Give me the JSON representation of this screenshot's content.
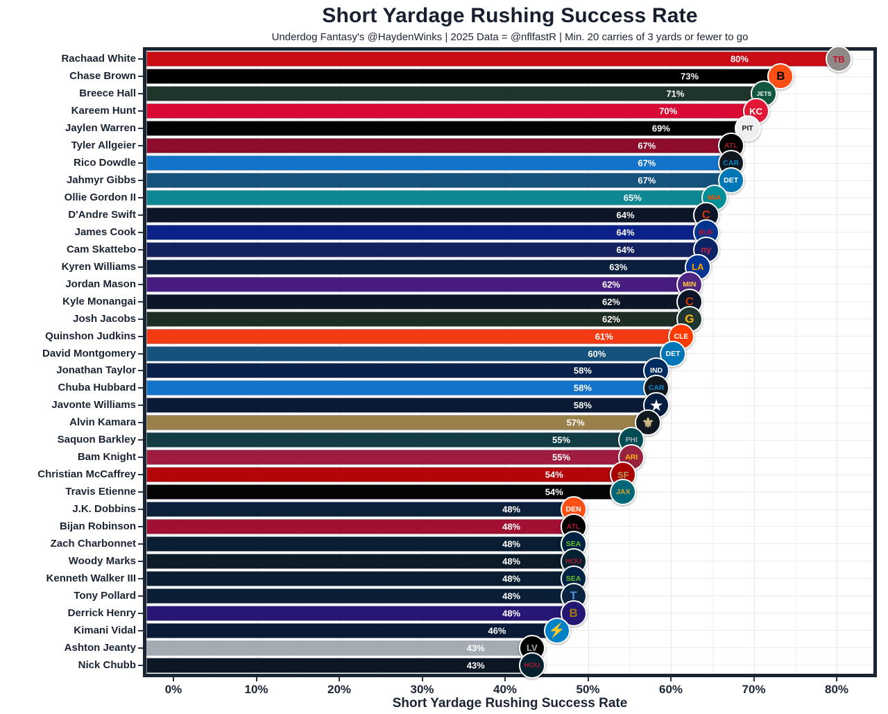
{
  "title": "Short Yardage Rushing Success Rate",
  "subtitle": "Underdog Fantasy's @HaydenWinks | 2025 Data = @nflfastR | Min. 20 carries of 3 yards or fewer to go",
  "x_axis": {
    "label": "Short Yardage Rushing Success Rate",
    "ticks": [
      "0%",
      "10%",
      "20%",
      "30%",
      "40%",
      "50%",
      "60%",
      "70%",
      "80%"
    ],
    "tick_values": [
      0,
      10,
      20,
      30,
      40,
      50,
      60,
      70,
      80
    ],
    "range": [
      -4,
      84
    ],
    "grid": "on",
    "minor_grid_step": 5
  },
  "chart_data": {
    "type": "bar",
    "orientation": "horizontal",
    "title": "Short Yardage Rushing Success Rate",
    "subtitle": "Underdog Fantasy's @HaydenWinks | 2025 Data = @nflfastR | Min. 20 carries of 3 yards or fewer to go",
    "xlabel": "Short Yardage Rushing Success Rate",
    "ylabel": "",
    "xlim": [
      0,
      84
    ],
    "legend": "none",
    "categories": [
      "Rachaad White",
      "Chase Brown",
      "Breece Hall",
      "Kareem Hunt",
      "Jaylen Warren",
      "Tyler Allgeier",
      "Rico Dowdle",
      "Jahmyr Gibbs",
      "Ollie Gordon II",
      "D'Andre Swift",
      "James Cook",
      "Cam Skattebo",
      "Kyren Williams",
      "Jordan Mason",
      "Kyle Monangai",
      "Josh Jacobs",
      "Quinshon Judkins",
      "David Montgomery",
      "Jonathan Taylor",
      "Chuba Hubbard",
      "Javonte Williams",
      "Alvin Kamara",
      "Saquon Barkley",
      "Bam Knight",
      "Christian McCaffrey",
      "Travis Etienne",
      "J.K. Dobbins",
      "Bijan Robinson",
      "Zach Charbonnet",
      "Woody Marks",
      "Kenneth Walker III",
      "Tony Pollard",
      "Derrick Henry",
      "Kimani Vidal",
      "Ashton Jeanty",
      "Nick Chubb"
    ],
    "values": [
      80,
      73,
      71,
      70,
      69,
      67,
      67,
      67,
      65,
      64,
      64,
      64,
      63,
      62,
      62,
      62,
      61,
      60,
      58,
      58,
      58,
      57,
      55,
      55,
      54,
      54,
      48,
      48,
      48,
      48,
      48,
      48,
      48,
      46,
      43,
      43
    ],
    "bars": [
      {
        "player": "Rachaad White",
        "team": "Tampa Bay Buccaneers",
        "value": 80,
        "label": "80%",
        "bar_color": "#C80D17",
        "logo": {
          "abbr": "TB",
          "bg": "#8F8A88",
          "fg": "#C8102E"
        }
      },
      {
        "player": "Chase Brown",
        "team": "Cincinnati Bengals",
        "value": 73,
        "label": "73%",
        "bar_color": "#000000",
        "logo": {
          "abbr": "B",
          "bg": "#FB4F14",
          "fg": "#000000"
        }
      },
      {
        "player": "Breece Hall",
        "team": "New York Jets",
        "value": 71,
        "label": "71%",
        "bar_color": "#1F352B",
        "logo": {
          "abbr": "JETS",
          "bg": "#125740",
          "fg": "#FFFFFF"
        }
      },
      {
        "player": "Kareem Hunt",
        "team": "Kansas City Chiefs",
        "value": 70,
        "label": "70%",
        "bar_color": "#D80A33",
        "logo": {
          "abbr": "KC",
          "bg": "#E31837",
          "fg": "#FFFFFF"
        }
      },
      {
        "player": "Jaylen Warren",
        "team": "Pittsburgh Steelers",
        "value": 69,
        "label": "69%",
        "bar_color": "#010101",
        "logo": {
          "abbr": "PIT",
          "bg": "#EFEFEF",
          "fg": "#101820"
        }
      },
      {
        "player": "Tyler Allgeier",
        "team": "Atlanta Falcons",
        "value": 67,
        "label": "67%",
        "bar_color": "#8E0C2B",
        "logo": {
          "abbr": "ATL",
          "bg": "#000000",
          "fg": "#A71930"
        }
      },
      {
        "player": "Rico Dowdle",
        "team": "Carolina Panthers",
        "value": 67,
        "label": "67%",
        "bar_color": "#1273C9",
        "logo": {
          "abbr": "CAR",
          "bg": "#101820",
          "fg": "#0085CA"
        }
      },
      {
        "player": "Jahmyr Gibbs",
        "team": "Detroit Lions",
        "value": 67,
        "label": "67%",
        "bar_color": "#15537D",
        "logo": {
          "abbr": "DET",
          "bg": "#0076B6",
          "fg": "#FFFFFF"
        }
      },
      {
        "player": "Ollie Gordon II",
        "team": "Miami Dolphins",
        "value": 65,
        "label": "65%",
        "bar_color": "#0F8793",
        "logo": {
          "abbr": "MIA",
          "bg": "#008E97",
          "fg": "#FC4C02"
        }
      },
      {
        "player": "D'Andre Swift",
        "team": "Chicago Bears",
        "value": 64,
        "label": "64%",
        "bar_color": "#0D1626",
        "logo": {
          "abbr": "C",
          "bg": "#0B162A",
          "fg": "#C83803"
        }
      },
      {
        "player": "James Cook",
        "team": "Buffalo Bills",
        "value": 64,
        "label": "64%",
        "bar_color": "#0B2188",
        "logo": {
          "abbr": "BUF",
          "bg": "#00338D",
          "fg": "#C60C30"
        }
      },
      {
        "player": "Cam Skattebo",
        "team": "New York Giants",
        "value": 64,
        "label": "64%",
        "bar_color": "#14215F",
        "logo": {
          "abbr": "ny",
          "bg": "#0B2265",
          "fg": "#C9243F"
        }
      },
      {
        "player": "Kyren Williams",
        "team": "Los Angeles Rams",
        "value": 63,
        "label": "63%",
        "bar_color": "#0B1E3E",
        "logo": {
          "abbr": "LA",
          "bg": "#003594",
          "fg": "#FFA300"
        }
      },
      {
        "player": "Jordan Mason",
        "team": "Minnesota Vikings",
        "value": 62,
        "label": "62%",
        "bar_color": "#471C80",
        "logo": {
          "abbr": "MIN",
          "bg": "#4F2683",
          "fg": "#FFC62F"
        }
      },
      {
        "player": "Kyle Monangai",
        "team": "Chicago Bears",
        "value": 62,
        "label": "62%",
        "bar_color": "#0D1626",
        "logo": {
          "abbr": "C",
          "bg": "#0B162A",
          "fg": "#C83803"
        }
      },
      {
        "player": "Josh Jacobs",
        "team": "Green Bay Packers",
        "value": 62,
        "label": "62%",
        "bar_color": "#1F2E24",
        "logo": {
          "abbr": "G",
          "bg": "#203731",
          "fg": "#FFB612"
        }
      },
      {
        "player": "Quinshon Judkins",
        "team": "Cleveland Browns",
        "value": 61,
        "label": "61%",
        "bar_color": "#F23B12",
        "logo": {
          "abbr": "CLE",
          "bg": "#FF3C00",
          "fg": "#FFFFFF"
        }
      },
      {
        "player": "David Montgomery",
        "team": "Detroit Lions",
        "value": 60,
        "label": "60%",
        "bar_color": "#15537D",
        "logo": {
          "abbr": "DET",
          "bg": "#0076B6",
          "fg": "#FFFFFF"
        }
      },
      {
        "player": "Jonathan Taylor",
        "team": "Indianapolis Colts",
        "value": 58,
        "label": "58%",
        "bar_color": "#08214B",
        "logo": {
          "abbr": "IND",
          "bg": "#002C5F",
          "fg": "#FFFFFF"
        }
      },
      {
        "player": "Chuba Hubbard",
        "team": "Carolina Panthers",
        "value": 58,
        "label": "58%",
        "bar_color": "#1273C9",
        "logo": {
          "abbr": "CAR",
          "bg": "#101820",
          "fg": "#0085CA"
        }
      },
      {
        "player": "Javonte Williams",
        "team": "Dallas Cowboys",
        "value": 58,
        "label": "58%",
        "bar_color": "#0A1A34",
        "logo": {
          "abbr": "★",
          "bg": "#041E42",
          "fg": "#FFFFFF"
        }
      },
      {
        "player": "Alvin Kamara",
        "team": "New Orleans Saints",
        "value": 57,
        "label": "57%",
        "bar_color": "#9A8049",
        "logo": {
          "abbr": "⚜",
          "bg": "#101820",
          "fg": "#D3BC8D"
        }
      },
      {
        "player": "Saquon Barkley",
        "team": "Philadelphia Eagles",
        "value": 55,
        "label": "55%",
        "bar_color": "#113C44",
        "logo": {
          "abbr": "PHI",
          "bg": "#004C54",
          "fg": "#A5ACAF"
        }
      },
      {
        "player": "Bam Knight",
        "team": "Arizona Cardinals",
        "value": 55,
        "label": "55%",
        "bar_color": "#A01C3E",
        "logo": {
          "abbr": "ARI",
          "bg": "#97233F",
          "fg": "#FFB612"
        }
      },
      {
        "player": "Christian McCaffrey",
        "team": "San Francisco 49ers",
        "value": 54,
        "label": "54%",
        "bar_color": "#B30509",
        "logo": {
          "abbr": "SF",
          "bg": "#AA0000",
          "fg": "#B3995D"
        }
      },
      {
        "player": "Travis Etienne",
        "team": "Jacksonville Jaguars",
        "value": 54,
        "label": "54%",
        "bar_color": "#050505",
        "logo": {
          "abbr": "JAX",
          "bg": "#006778",
          "fg": "#D7A22A"
        }
      },
      {
        "player": "J.K. Dobbins",
        "team": "Denver Broncos",
        "value": 48,
        "label": "48%",
        "bar_color": "#0C1F3B",
        "logo": {
          "abbr": "DEN",
          "bg": "#FB4F14",
          "fg": "#FFFFFF"
        }
      },
      {
        "player": "Bijan Robinson",
        "team": "Atlanta Falcons",
        "value": 48,
        "label": "48%",
        "bar_color": "#A11031",
        "logo": {
          "abbr": "ATL",
          "bg": "#000000",
          "fg": "#A71930"
        }
      },
      {
        "player": "Zach Charbonnet",
        "team": "Seattle Seahawks",
        "value": 48,
        "label": "48%",
        "bar_color": "#0A1D33",
        "logo": {
          "abbr": "SEA",
          "bg": "#002244",
          "fg": "#69BE28"
        }
      },
      {
        "player": "Woody Marks",
        "team": "Houston Texans",
        "value": 48,
        "label": "48%",
        "bar_color": "#0B1B28",
        "logo": {
          "abbr": "HOU",
          "bg": "#03202F",
          "fg": "#A71930"
        }
      },
      {
        "player": "Kenneth Walker III",
        "team": "Seattle Seahawks",
        "value": 48,
        "label": "48%",
        "bar_color": "#0A1D33",
        "logo": {
          "abbr": "SEA",
          "bg": "#002244",
          "fg": "#69BE28"
        }
      },
      {
        "player": "Tony Pollard",
        "team": "Tennessee Titans",
        "value": 48,
        "label": "48%",
        "bar_color": "#0A1E35",
        "logo": {
          "abbr": "T",
          "bg": "#0C2340",
          "fg": "#4B92DB"
        }
      },
      {
        "player": "Derrick Henry",
        "team": "Baltimore Ravens",
        "value": 48,
        "label": "48%",
        "bar_color": "#271674",
        "logo": {
          "abbr": "B",
          "bg": "#241773",
          "fg": "#9E7C0C"
        }
      },
      {
        "player": "Kimani Vidal",
        "team": "Los Angeles Chargers",
        "value": 46,
        "label": "46%",
        "bar_color": "#0A1B37",
        "logo": {
          "abbr": "⚡",
          "bg": "#0080C6",
          "fg": "#FFC20E"
        }
      },
      {
        "player": "Ashton Jeanty",
        "team": "Las Vegas Raiders",
        "value": 43,
        "label": "43%",
        "bar_color": "#A4ABB2",
        "logo": {
          "abbr": "LV",
          "bg": "#000000",
          "fg": "#A5ACAF"
        }
      },
      {
        "player": "Nick Chubb",
        "team": "Houston Texans",
        "value": 43,
        "label": "43%",
        "bar_color": "#0B1722",
        "logo": {
          "abbr": "HOU",
          "bg": "#03202F",
          "fg": "#A71930"
        }
      }
    ]
  }
}
